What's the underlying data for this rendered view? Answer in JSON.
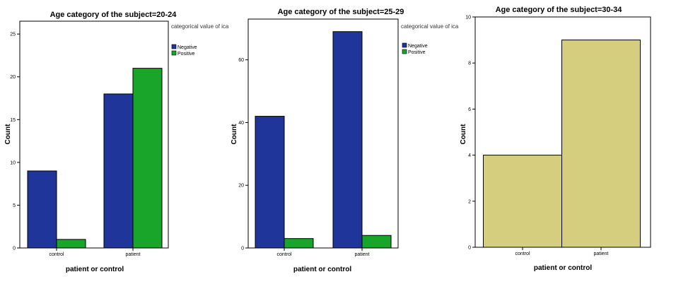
{
  "chart_data": [
    {
      "type": "bar",
      "title": "Age category of the subject=20-24",
      "xlabel": "patient or control",
      "ylabel": "Count",
      "categories": [
        "control",
        "patient"
      ],
      "ylim": [
        0,
        26.5
      ],
      "yticks": [
        0,
        5,
        10,
        15,
        20,
        25
      ],
      "legend_title": "categorical value of ica",
      "legend_position": "right",
      "series": [
        {
          "name": "Negative",
          "color": "#1F3599",
          "values": [
            9,
            18
          ]
        },
        {
          "name": "Positive",
          "color": "#18A52A",
          "values": [
            1,
            21
          ]
        }
      ]
    },
    {
      "type": "bar",
      "title": "Age category of the subject=25-29",
      "xlabel": "patient or control",
      "ylabel": "Count",
      "categories": [
        "control",
        "patient"
      ],
      "ylim": [
        0,
        73
      ],
      "yticks": [
        0,
        20,
        40,
        60
      ],
      "legend_title": "categorical value of ica",
      "legend_position": "right",
      "series": [
        {
          "name": "Negative",
          "color": "#1F3599",
          "values": [
            42,
            69
          ]
        },
        {
          "name": "Positive",
          "color": "#18A52A",
          "values": [
            3,
            4
          ]
        }
      ]
    },
    {
      "type": "bar",
      "title": "Age category of the subject=30-34",
      "xlabel": "patient or control",
      "ylabel": "Count",
      "categories": [
        "control",
        "patient"
      ],
      "ylim": [
        0,
        10
      ],
      "yticks": [
        0,
        2,
        4,
        6,
        8,
        10
      ],
      "series": [
        {
          "color": "#D4CE7E",
          "values": [
            4,
            9
          ]
        }
      ]
    }
  ]
}
